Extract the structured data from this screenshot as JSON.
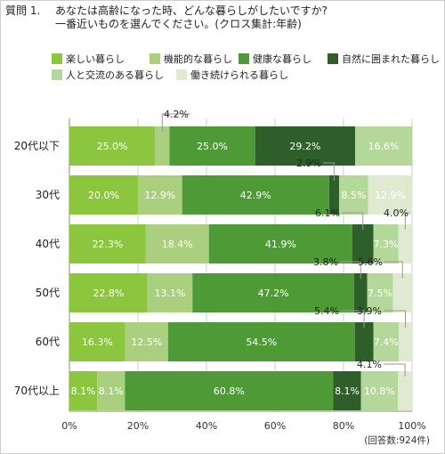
{
  "question": {
    "number": "質問 1.",
    "line1": "あなたは高齢になった時、どんな暮らしがしたいですか?",
    "line2": "一番近いものを選んでください。(クロス集計:年齢)"
  },
  "footnote": "(回答数:924件)",
  "colors": [
    "#8cc63f",
    "#a9cf7f",
    "#4e9a36",
    "#2e5e29",
    "#b4d79a",
    "#deebd0"
  ],
  "chart_data": {
    "type": "bar",
    "orientation": "horizontal",
    "stacked": "percent",
    "categories": [
      "20代以下",
      "30代",
      "40代",
      "50代",
      "60代",
      "70代以上"
    ],
    "series": [
      {
        "name": "楽しい暮らし",
        "values": [
          25.0,
          20.0,
          22.3,
          22.8,
          16.3,
          8.1
        ]
      },
      {
        "name": "機能的な暮らし",
        "values": [
          4.2,
          12.9,
          18.4,
          13.1,
          12.5,
          8.1
        ]
      },
      {
        "name": "健康な暮らし",
        "values": [
          25.0,
          42.9,
          41.9,
          47.2,
          54.5,
          60.8
        ]
      },
      {
        "name": "自然に囲まれた暮らし",
        "values": [
          29.2,
          2.9,
          6.1,
          3.8,
          5.4,
          8.1
        ]
      },
      {
        "name": "人と交流のある暮らし",
        "values": [
          16.6,
          8.5,
          7.3,
          7.5,
          7.4,
          10.8
        ]
      },
      {
        "name": "働き続けられる暮らし",
        "values": [
          0.0,
          12.9,
          4.0,
          5.6,
          3.9,
          4.1
        ]
      }
    ],
    "value_labels": [
      [
        "25.0%",
        "4.2%",
        "25.0%",
        "29.2%",
        "16.6%",
        ""
      ],
      [
        "20.0%",
        "12.9%",
        "42.9%",
        "2.9%",
        "8.5%",
        "12.9%"
      ],
      [
        "22.3%",
        "18.4%",
        "41.9%",
        "6.1%",
        "7.3%",
        "4.0%"
      ],
      [
        "22.8%",
        "13.1%",
        "47.2%",
        "3.8%",
        "7.5%",
        "5.6%"
      ],
      [
        "16.3%",
        "12.5%",
        "54.5%",
        "5.4%",
        "7.4%",
        "3.9%"
      ],
      [
        "8.1%",
        "8.1%",
        "60.8%",
        "8.1%",
        "10.8%",
        "4.1%"
      ]
    ],
    "xticks": [
      "0%",
      "20%",
      "40%",
      "60%",
      "80%",
      "100%"
    ],
    "xlim": [
      0,
      100
    ],
    "grid": true,
    "legend_position": "top"
  }
}
